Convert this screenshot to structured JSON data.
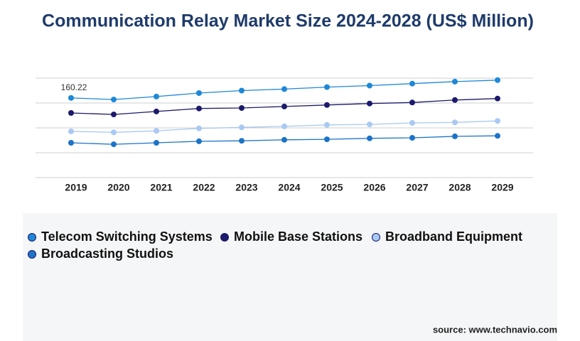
{
  "chart_data": {
    "type": "line",
    "title": "Communication Relay Market Size 2024-2028 (US$ Million)",
    "source": "source: www.technavio.com",
    "categories": [
      "2019",
      "2020",
      "2021",
      "2022",
      "2023",
      "2024",
      "2025",
      "2026",
      "2027",
      "2028",
      "2029"
    ],
    "series": [
      {
        "name": "Telecom Switching Systems",
        "color": "#1e88d6",
        "values": [
          160.22,
          157,
          163,
          170,
          175,
          178,
          182,
          185,
          189,
          193,
          196
        ],
        "value_labels": [
          "160.22",
          null,
          null,
          null,
          null,
          null,
          null,
          null,
          null,
          null,
          null
        ]
      },
      {
        "name": "Mobile Base Stations",
        "color": "#1b1a6b",
        "values": [
          130,
          127,
          133,
          139,
          140,
          143,
          146,
          149,
          151,
          156,
          159
        ]
      },
      {
        "name": "Broadband Equipment",
        "color": "#a9c9f2",
        "values": [
          93,
          91,
          94,
          99,
          101,
          103,
          106,
          107,
          110,
          111,
          114
        ]
      },
      {
        "name": "Broadcasting Studios",
        "color": "#1c74c6",
        "values": [
          70,
          67,
          70,
          73,
          74,
          76,
          77,
          79,
          80,
          83,
          84
        ]
      }
    ],
    "ylim": [
      0,
      220
    ],
    "yticks": [
      0,
      50,
      100,
      150,
      200
    ],
    "ytick_labels": false,
    "grid": true
  }
}
